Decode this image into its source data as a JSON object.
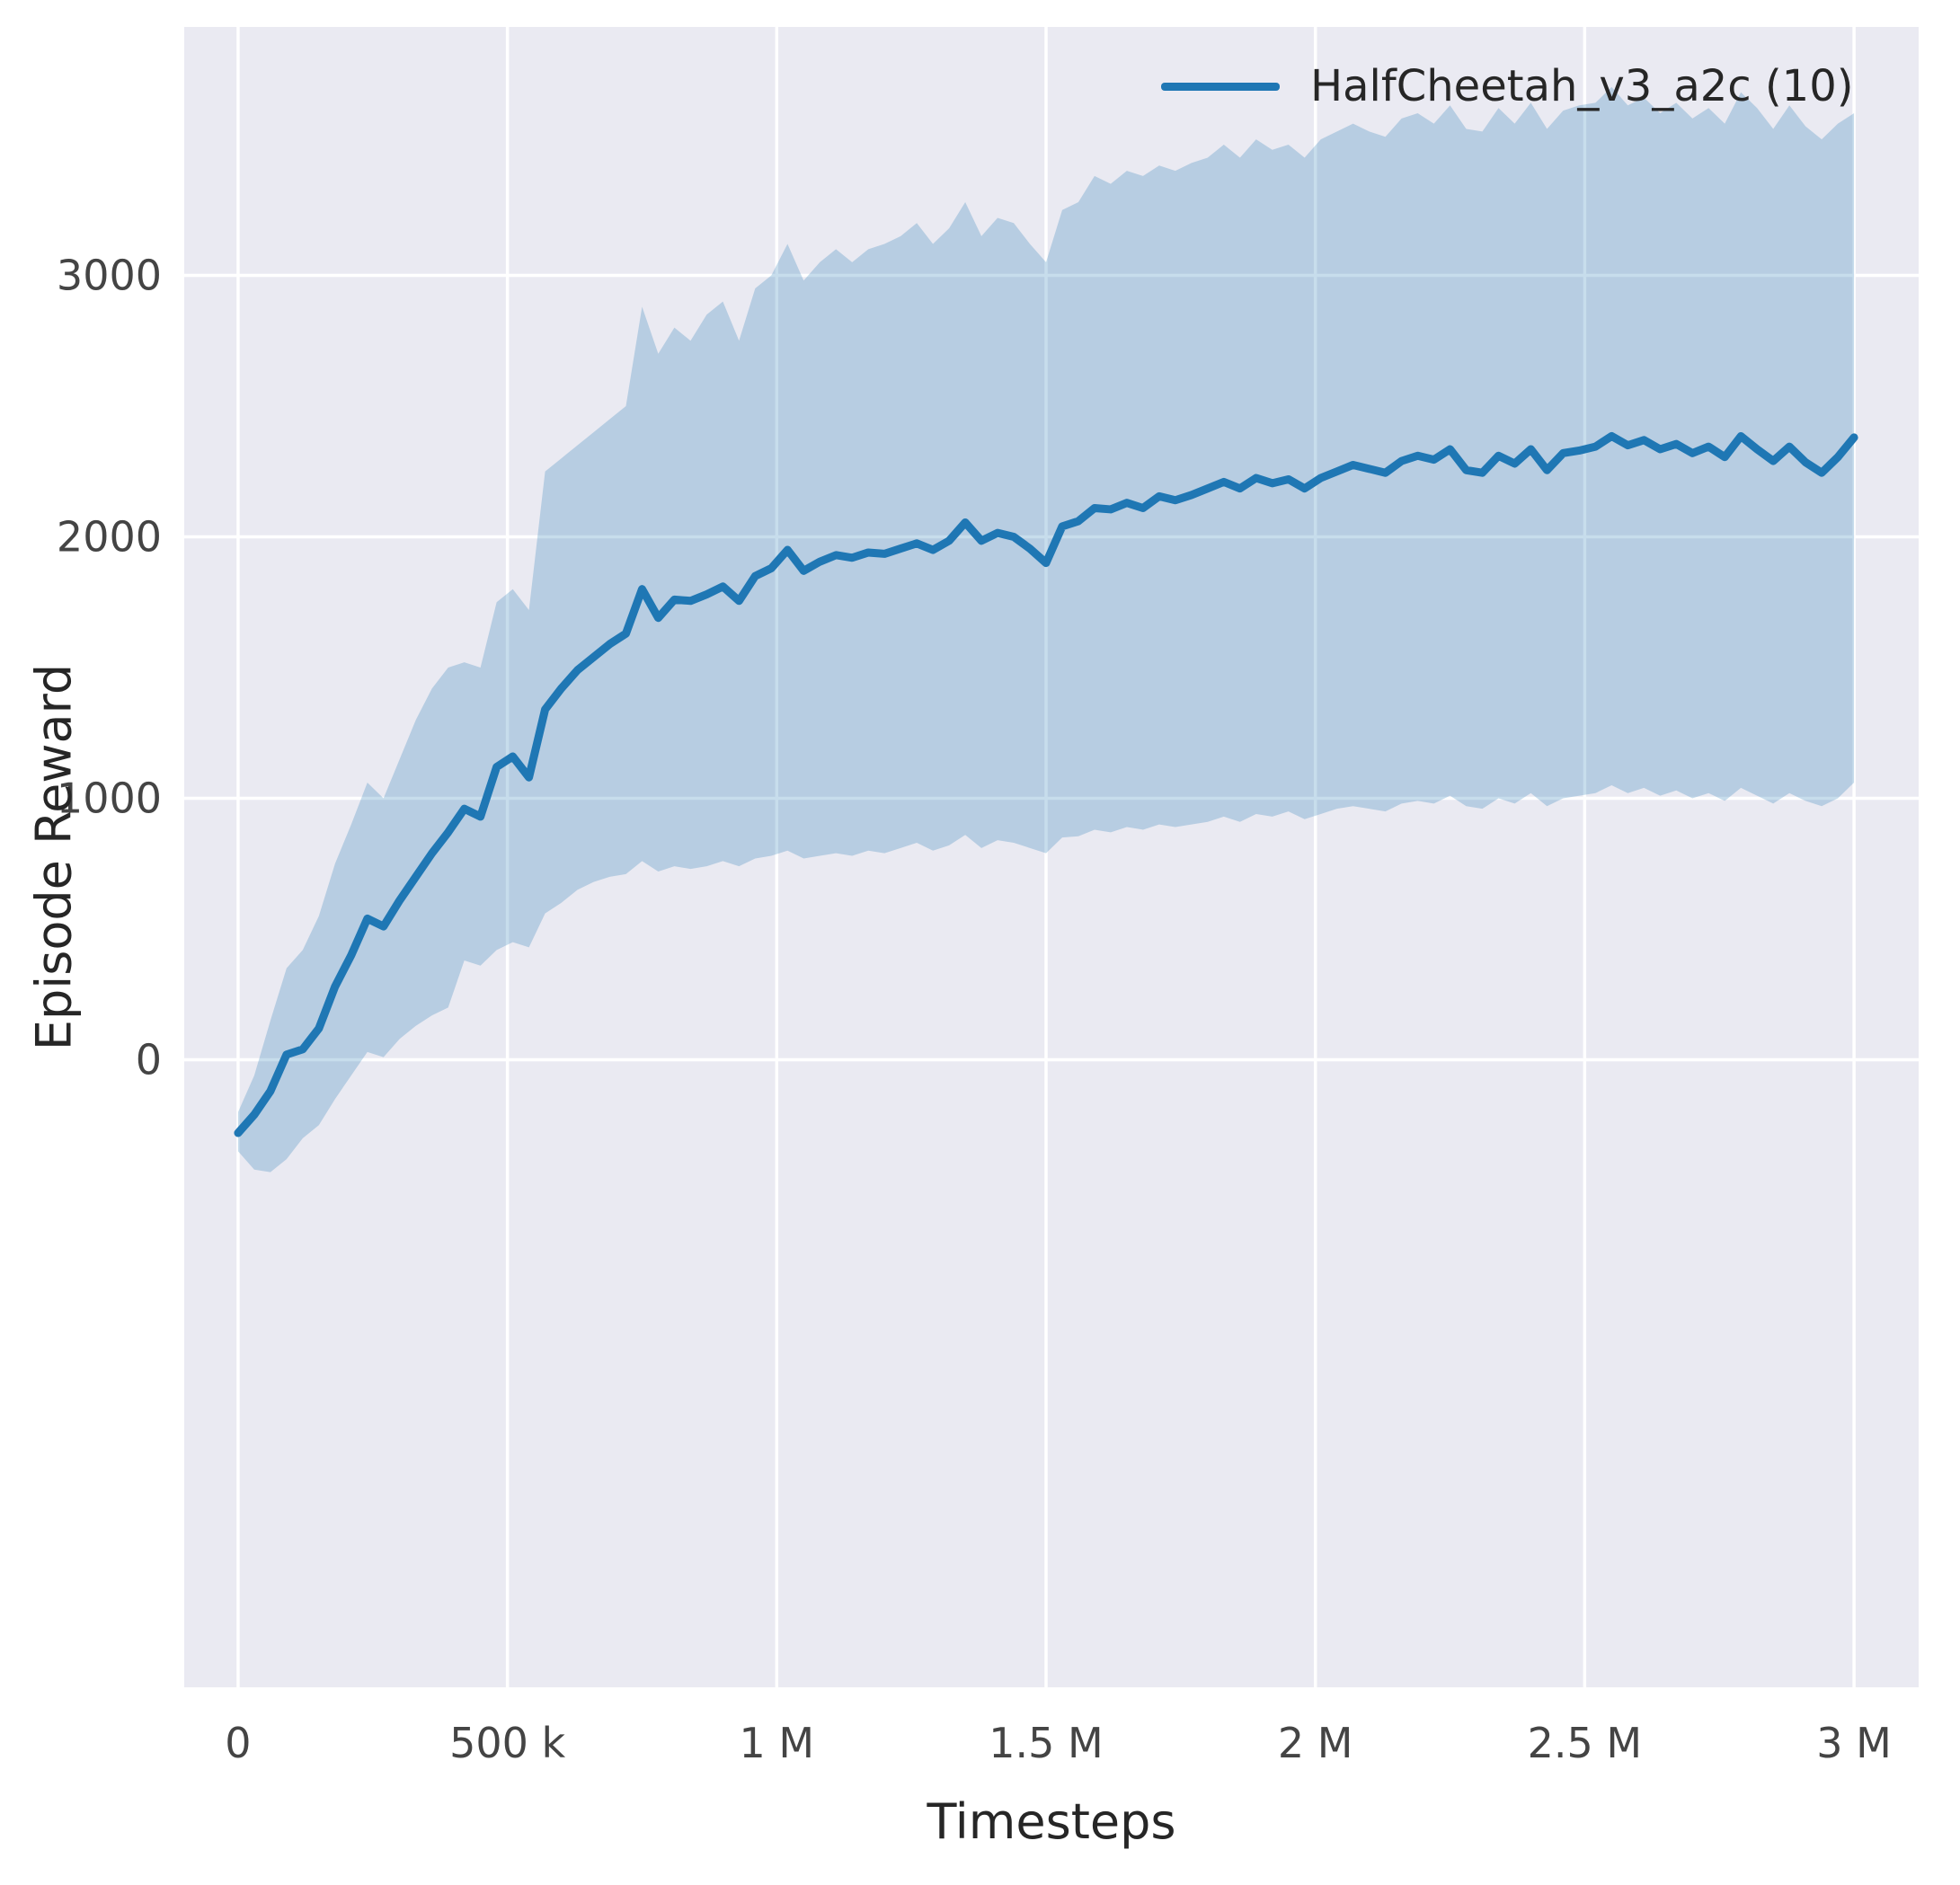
{
  "figure": {
    "xlabel": "Timesteps",
    "ylabel": "Episode Reward"
  },
  "chart_data": {
    "type": "line",
    "title": "",
    "xlabel": "Timesteps",
    "ylabel": "Episode Reward",
    "grid": true,
    "legend": {
      "position": "upper right",
      "entries": [
        "HalfCheetah_v3_a2c (10)"
      ]
    },
    "xlim": [
      -100000,
      3120000
    ],
    "ylim": [
      -2400,
      3950
    ],
    "xticks": {
      "values": [
        0,
        500000,
        1000000,
        1500000,
        2000000,
        2500000,
        3000000
      ],
      "labels": [
        "0",
        "500 k",
        "1 M",
        "1.5 M",
        "2 M",
        "2.5 M",
        "3 M"
      ]
    },
    "yticks": {
      "values": [
        0,
        1000,
        2000,
        3000
      ],
      "labels": [
        "0",
        "1000",
        "2000",
        "3000"
      ]
    },
    "colors": {
      "line": "#1f77b4",
      "band_fill": "#1f77b4",
      "band_opacity": 0.25,
      "plot_bg": "#eaeaf2",
      "grid": "#ffffff",
      "tick_text": "#444444",
      "label_text": "#262626"
    },
    "x_scale": 1000,
    "series": [
      {
        "name": "HalfCheetah_v3_a2c (10)",
        "x": [
          0,
          30,
          60,
          90,
          120,
          150,
          180,
          210,
          240,
          270,
          300,
          330,
          360,
          390,
          420,
          450,
          480,
          510,
          540,
          570,
          600,
          630,
          660,
          690,
          720,
          750,
          780,
          810,
          840,
          870,
          900,
          930,
          960,
          990,
          1020,
          1050,
          1080,
          1110,
          1140,
          1170,
          1200,
          1230,
          1260,
          1290,
          1320,
          1350,
          1380,
          1410,
          1440,
          1470,
          1500,
          1530,
          1560,
          1590,
          1620,
          1650,
          1680,
          1710,
          1740,
          1770,
          1800,
          1830,
          1860,
          1890,
          1920,
          1950,
          1980,
          2010,
          2040,
          2070,
          2100,
          2130,
          2160,
          2190,
          2220,
          2250,
          2280,
          2310,
          2340,
          2370,
          2400,
          2430,
          2460,
          2490,
          2520,
          2550,
          2580,
          2610,
          2640,
          2670,
          2700,
          2730,
          2760,
          2790,
          2820,
          2850,
          2880,
          2910,
          2940,
          2970,
          3000
        ],
        "mean": [
          -280,
          -210,
          -120,
          20,
          40,
          120,
          280,
          400,
          540,
          510,
          610,
          700,
          790,
          870,
          960,
          930,
          1120,
          1160,
          1080,
          1340,
          1420,
          1490,
          1540,
          1590,
          1630,
          1800,
          1690,
          1760,
          1755,
          1780,
          1810,
          1755,
          1850,
          1880,
          1950,
          1870,
          1905,
          1930,
          1920,
          1940,
          1935,
          1955,
          1975,
          1950,
          1985,
          2055,
          1985,
          2015,
          2000,
          1955,
          1900,
          2040,
          2060,
          2110,
          2105,
          2130,
          2110,
          2155,
          2140,
          2160,
          2185,
          2210,
          2185,
          2225,
          2205,
          2220,
          2185,
          2225,
          2250,
          2275,
          2260,
          2245,
          2290,
          2310,
          2295,
          2335,
          2255,
          2245,
          2310,
          2280,
          2335,
          2255,
          2320,
          2330,
          2345,
          2385,
          2350,
          2370,
          2335,
          2355,
          2320,
          2345,
          2305,
          2385,
          2335,
          2290,
          2345,
          2285,
          2245,
          2305,
          2380
        ],
        "lower": [
          -350,
          -420,
          -430,
          -380,
          -300,
          -250,
          -150,
          -60,
          30,
          10,
          80,
          130,
          170,
          200,
          380,
          360,
          420,
          450,
          430,
          560,
          600,
          650,
          680,
          700,
          710,
          760,
          720,
          740,
          730,
          740,
          760,
          740,
          770,
          780,
          800,
          770,
          780,
          790,
          780,
          800,
          790,
          810,
          830,
          800,
          820,
          860,
          810,
          840,
          830,
          810,
          790,
          850,
          855,
          880,
          870,
          890,
          880,
          900,
          890,
          900,
          910,
          930,
          910,
          940,
          930,
          950,
          920,
          940,
          960,
          970,
          960,
          950,
          980,
          990,
          980,
          1010,
          970,
          960,
          1000,
          980,
          1020,
          970,
          1000,
          1010,
          1020,
          1050,
          1020,
          1040,
          1010,
          1030,
          1000,
          1020,
          990,
          1040,
          1010,
          980,
          1020,
          990,
          970,
          1000,
          1060
        ],
        "upper": [
          -200,
          -60,
          150,
          350,
          420,
          550,
          750,
          900,
          1060,
          1000,
          1150,
          1300,
          1420,
          1500,
          1520,
          1500,
          1750,
          1800,
          1720,
          2250,
          2300,
          2350,
          2400,
          2450,
          2500,
          2880,
          2700,
          2800,
          2750,
          2850,
          2900,
          2750,
          2950,
          3000,
          3120,
          2980,
          3050,
          3100,
          3050,
          3100,
          3120,
          3150,
          3200,
          3120,
          3180,
          3280,
          3150,
          3220,
          3200,
          3120,
          3050,
          3250,
          3280,
          3380,
          3350,
          3400,
          3380,
          3420,
          3400,
          3430,
          3450,
          3500,
          3450,
          3520,
          3480,
          3500,
          3450,
          3520,
          3550,
          3580,
          3550,
          3530,
          3600,
          3620,
          3580,
          3650,
          3560,
          3550,
          3640,
          3580,
          3660,
          3560,
          3630,
          3650,
          3660,
          3720,
          3650,
          3680,
          3620,
          3660,
          3600,
          3640,
          3580,
          3700,
          3640,
          3560,
          3650,
          3570,
          3520,
          3580,
          3620
        ]
      }
    ]
  }
}
